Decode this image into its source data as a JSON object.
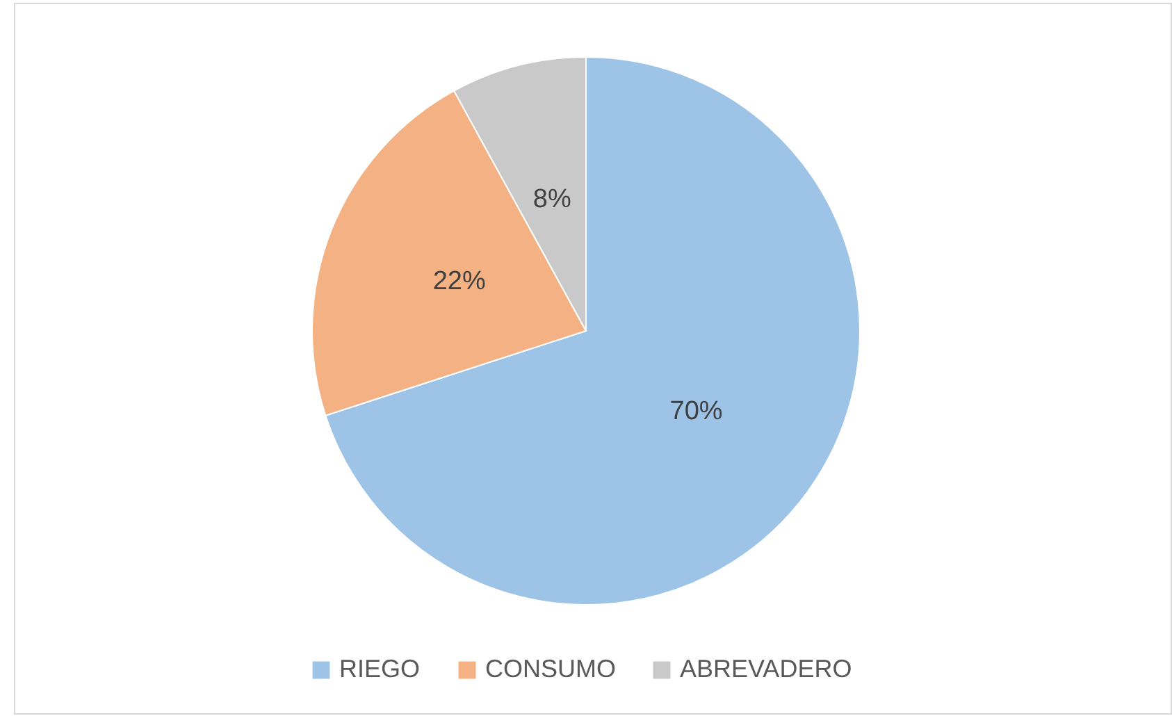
{
  "chart_data": {
    "type": "pie",
    "categories": [
      "RIEGO",
      "CONSUMO",
      "ABREVADERO"
    ],
    "values": [
      70,
      22,
      8
    ],
    "value_labels": [
      "70%",
      "22%",
      "8%"
    ],
    "colors": [
      "#9dc3e6",
      "#f4b183",
      "#c9c9c9"
    ],
    "legend": "bottom"
  }
}
